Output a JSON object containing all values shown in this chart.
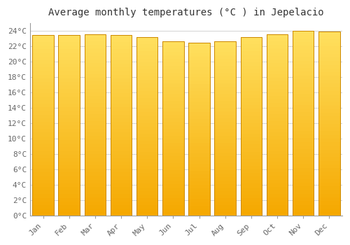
{
  "title": "Average monthly temperatures (°C ) in Jepelacio",
  "months": [
    "Jan",
    "Feb",
    "Mar",
    "Apr",
    "May",
    "Jun",
    "Jul",
    "Aug",
    "Sep",
    "Oct",
    "Nov",
    "Dec"
  ],
  "values": [
    23.5,
    23.5,
    23.6,
    23.5,
    23.2,
    22.7,
    22.5,
    22.7,
    23.2,
    23.6,
    24.0,
    23.9
  ],
  "bar_color_top": "#FFD84A",
  "bar_color_bottom": "#F5A800",
  "bar_edge_color": "#CC8800",
  "background_color": "#FFFFFF",
  "grid_color": "#CCCCCC",
  "ylim": [
    0,
    25
  ],
  "ytick_max": 24,
  "ytick_step": 2,
  "title_fontsize": 10,
  "tick_fontsize": 8,
  "bar_width": 0.82
}
